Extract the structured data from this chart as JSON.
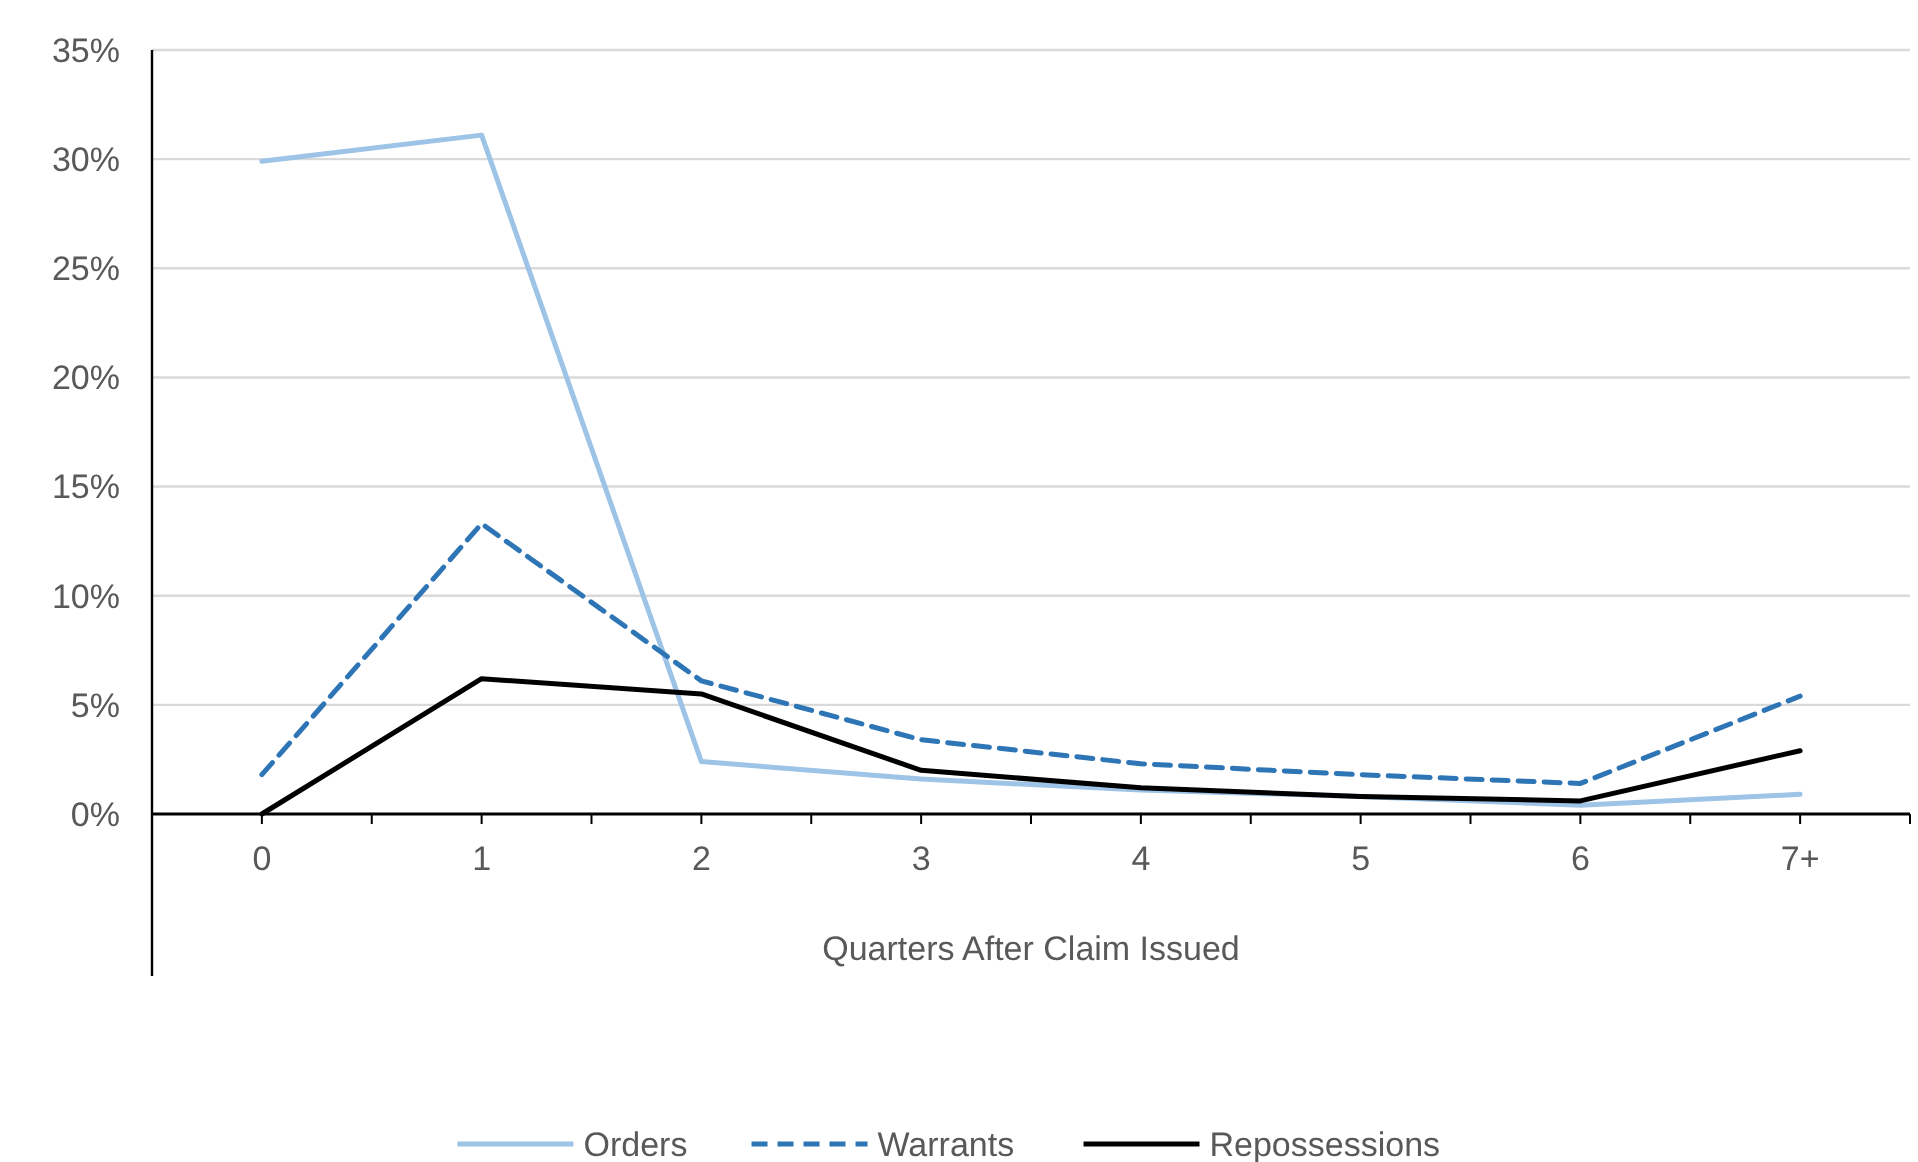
{
  "chart_data": {
    "type": "line",
    "xlabel": "Quarters After Claim Issued",
    "categories": [
      "0",
      "1",
      "2",
      "3",
      "4",
      "5",
      "6",
      "7+"
    ],
    "series": [
      {
        "name": "Orders",
        "color": "#9dc3e6",
        "line_style": "solid",
        "values": [
          29.9,
          31.1,
          2.4,
          1.6,
          1.1,
          0.8,
          0.4,
          0.9
        ]
      },
      {
        "name": "Warrants",
        "color": "#2e75b6",
        "line_style": "dashed",
        "values": [
          1.8,
          13.3,
          6.1,
          3.4,
          2.3,
          1.8,
          1.4,
          5.4
        ]
      },
      {
        "name": "Repossessions",
        "color": "#000000",
        "line_style": "solid",
        "values": [
          0,
          6.2,
          5.5,
          2.0,
          1.2,
          0.8,
          0.6,
          2.9
        ]
      }
    ],
    "ylim": [
      0,
      35
    ],
    "yticks": [
      {
        "value": 0,
        "label": "0%"
      },
      {
        "value": 5,
        "label": "5%"
      },
      {
        "value": 10,
        "label": "10%"
      },
      {
        "value": 15,
        "label": "15%"
      },
      {
        "value": 20,
        "label": "20%"
      },
      {
        "value": 25,
        "label": "25%"
      },
      {
        "value": 30,
        "label": "30%"
      },
      {
        "value": 35,
        "label": "35%"
      }
    ],
    "grid": "y",
    "legend": "bottom"
  }
}
